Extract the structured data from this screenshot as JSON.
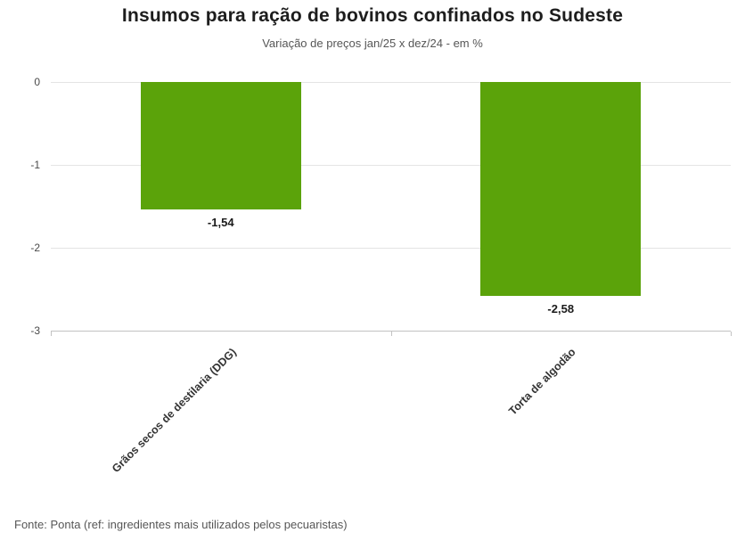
{
  "footer": "Fonte: Ponta (ref: ingredientes mais utilizados pelos pecuaristas)",
  "chart_data": {
    "type": "bar",
    "title": "Insumos para ração de bovinos confinados no Sudeste",
    "subtitle": "Variação de preços jan/25 x dez/24 - em %",
    "categories": [
      "Grãos secos de destilaria (DDG)",
      "Torta de algodão"
    ],
    "values": [
      -1.54,
      -2.58
    ],
    "value_labels": [
      "-1,54",
      "-2,58"
    ],
    "xlabel": "",
    "ylabel": "",
    "ylim": [
      -3,
      0
    ],
    "yticks": [
      0,
      -1,
      -2,
      -3
    ],
    "grid": true,
    "legend": "none",
    "bar_color": "#5ba30a",
    "orientation": "vertical"
  }
}
